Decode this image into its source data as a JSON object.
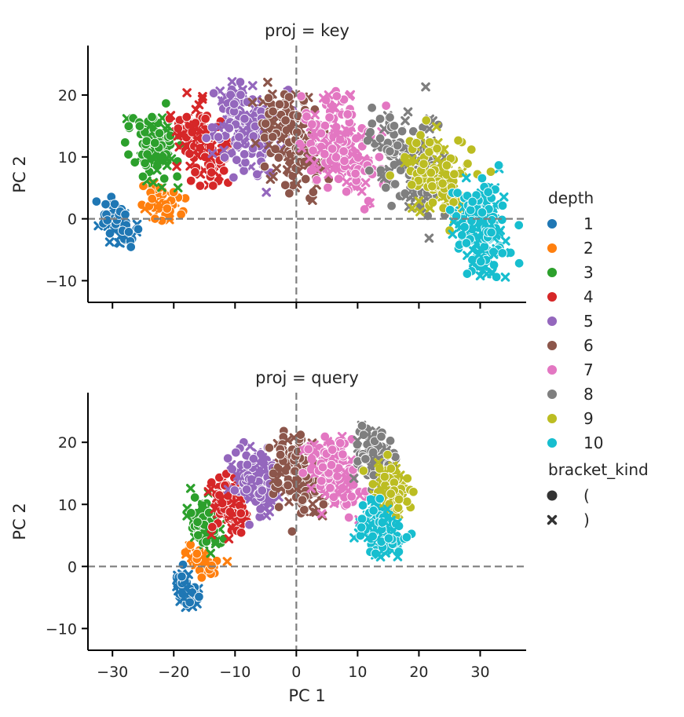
{
  "legend": {
    "hue_title": "depth",
    "style_title": "bracket_kind",
    "depths": [
      {
        "label": "1",
        "color": "#1f77b4"
      },
      {
        "label": "2",
        "color": "#ff7f0e"
      },
      {
        "label": "3",
        "color": "#2ca02c"
      },
      {
        "label": "4",
        "color": "#d62728"
      },
      {
        "label": "5",
        "color": "#9467bd"
      },
      {
        "label": "6",
        "color": "#8c564b"
      },
      {
        "label": "7",
        "color": "#e377c2"
      },
      {
        "label": "8",
        "color": "#7f7f7f"
      },
      {
        "label": "9",
        "color": "#bcbd22"
      },
      {
        "label": "10",
        "color": "#17becf"
      }
    ],
    "kinds": [
      {
        "label": "(",
        "marker": "circle",
        "color": "#333333"
      },
      {
        "label": ")",
        "marker": "x",
        "color": "#333333"
      }
    ]
  },
  "chart_data": [
    {
      "type": "scatter",
      "title": "proj = key",
      "xlabel": "",
      "ylabel": "PC 2",
      "xlim": [
        -34,
        37.5
      ],
      "ylim": [
        -13.5,
        28
      ],
      "xticks": [
        -30,
        -20,
        -10,
        0,
        10,
        20,
        30
      ],
      "yticks": [
        -10,
        0,
        10,
        20
      ],
      "show_xtick_labels": false,
      "reference_lines": {
        "x": 0,
        "y": 0,
        "style": "dashed"
      },
      "grid": false,
      "clusters": [
        {
          "depth": "1",
          "center_x": [
            -30,
            -28
          ],
          "center_y": [
            2,
            -3
          ],
          "spread": 1.6,
          "points": 70
        },
        {
          "depth": "2",
          "center_x": [
            -24,
            -20
          ],
          "center_y": [
            4,
            2
          ],
          "spread": 2.0,
          "points": 60
        },
        {
          "depth": "3",
          "center_x": [
            -25,
            -21
          ],
          "center_y": [
            14,
            10
          ],
          "spread": 3.0,
          "points": 110
        },
        {
          "depth": "4",
          "center_x": [
            -17,
            -13
          ],
          "center_y": [
            15,
            9
          ],
          "spread": 3.4,
          "points": 130
        },
        {
          "depth": "5",
          "center_x": [
            -10,
            -6
          ],
          "center_y": [
            18,
            11
          ],
          "spread": 4.0,
          "points": 160
        },
        {
          "depth": "6",
          "center_x": [
            -3,
            2
          ],
          "center_y": [
            18,
            8
          ],
          "spread": 4.0,
          "points": 170
        },
        {
          "depth": "7",
          "center_x": [
            5,
            10
          ],
          "center_y": [
            16,
            7
          ],
          "spread": 4.5,
          "points": 180
        },
        {
          "depth": "8",
          "center_x": [
            16,
            21
          ],
          "center_y": [
            14,
            4
          ],
          "spread": 4.2,
          "points": 160
        },
        {
          "depth": "9",
          "center_x": [
            21,
            25
          ],
          "center_y": [
            10,
            3
          ],
          "spread": 4.0,
          "points": 130
        },
        {
          "depth": "10",
          "center_x": [
            29,
            31
          ],
          "center_y": [
            3,
            -6
          ],
          "spread": 3.5,
          "points": 190
        }
      ]
    },
    {
      "type": "scatter",
      "title": "proj = query",
      "xlabel": "PC 1",
      "ylabel": "PC 2",
      "xlim": [
        -34,
        37.5
      ],
      "ylim": [
        -13.5,
        28
      ],
      "xticks": [
        -30,
        -20,
        -10,
        0,
        10,
        20,
        30
      ],
      "yticks": [
        -10,
        0,
        10,
        20
      ],
      "show_xtick_labels": true,
      "reference_lines": {
        "x": 0,
        "y": 0,
        "style": "dashed"
      },
      "grid": false,
      "clusters": [
        {
          "depth": "1",
          "center_x": [
            -19,
            -17
          ],
          "center_y": [
            -2,
            -5
          ],
          "spread": 1.3,
          "points": 70
        },
        {
          "depth": "2",
          "center_x": [
            -17,
            -14
          ],
          "center_y": [
            2,
            0
          ],
          "spread": 1.5,
          "points": 60
        },
        {
          "depth": "3",
          "center_x": [
            -16,
            -14
          ],
          "center_y": [
            9,
            5
          ],
          "spread": 2.0,
          "points": 100
        },
        {
          "depth": "4",
          "center_x": [
            -12,
            -10
          ],
          "center_y": [
            12,
            7
          ],
          "spread": 2.4,
          "points": 110
        },
        {
          "depth": "5",
          "center_x": [
            -8,
            -5
          ],
          "center_y": [
            17,
            11
          ],
          "spread": 2.8,
          "points": 130
        },
        {
          "depth": "6",
          "center_x": [
            -2,
            2
          ],
          "center_y": [
            19,
            11
          ],
          "spread": 3.0,
          "points": 140
        },
        {
          "depth": "7",
          "center_x": [
            4,
            8
          ],
          "center_y": [
            19,
            11
          ],
          "spread": 3.0,
          "points": 140
        },
        {
          "depth": "8",
          "center_x": [
            12,
            14
          ],
          "center_y": [
            20,
            15
          ],
          "spread": 2.4,
          "points": 110
        },
        {
          "depth": "9",
          "center_x": [
            15,
            16
          ],
          "center_y": [
            15,
            10
          ],
          "spread": 2.4,
          "points": 100
        },
        {
          "depth": "10",
          "center_x": [
            12,
            15
          ],
          "center_y": [
            8,
            4
          ],
          "spread": 2.6,
          "points": 140
        }
      ]
    }
  ]
}
